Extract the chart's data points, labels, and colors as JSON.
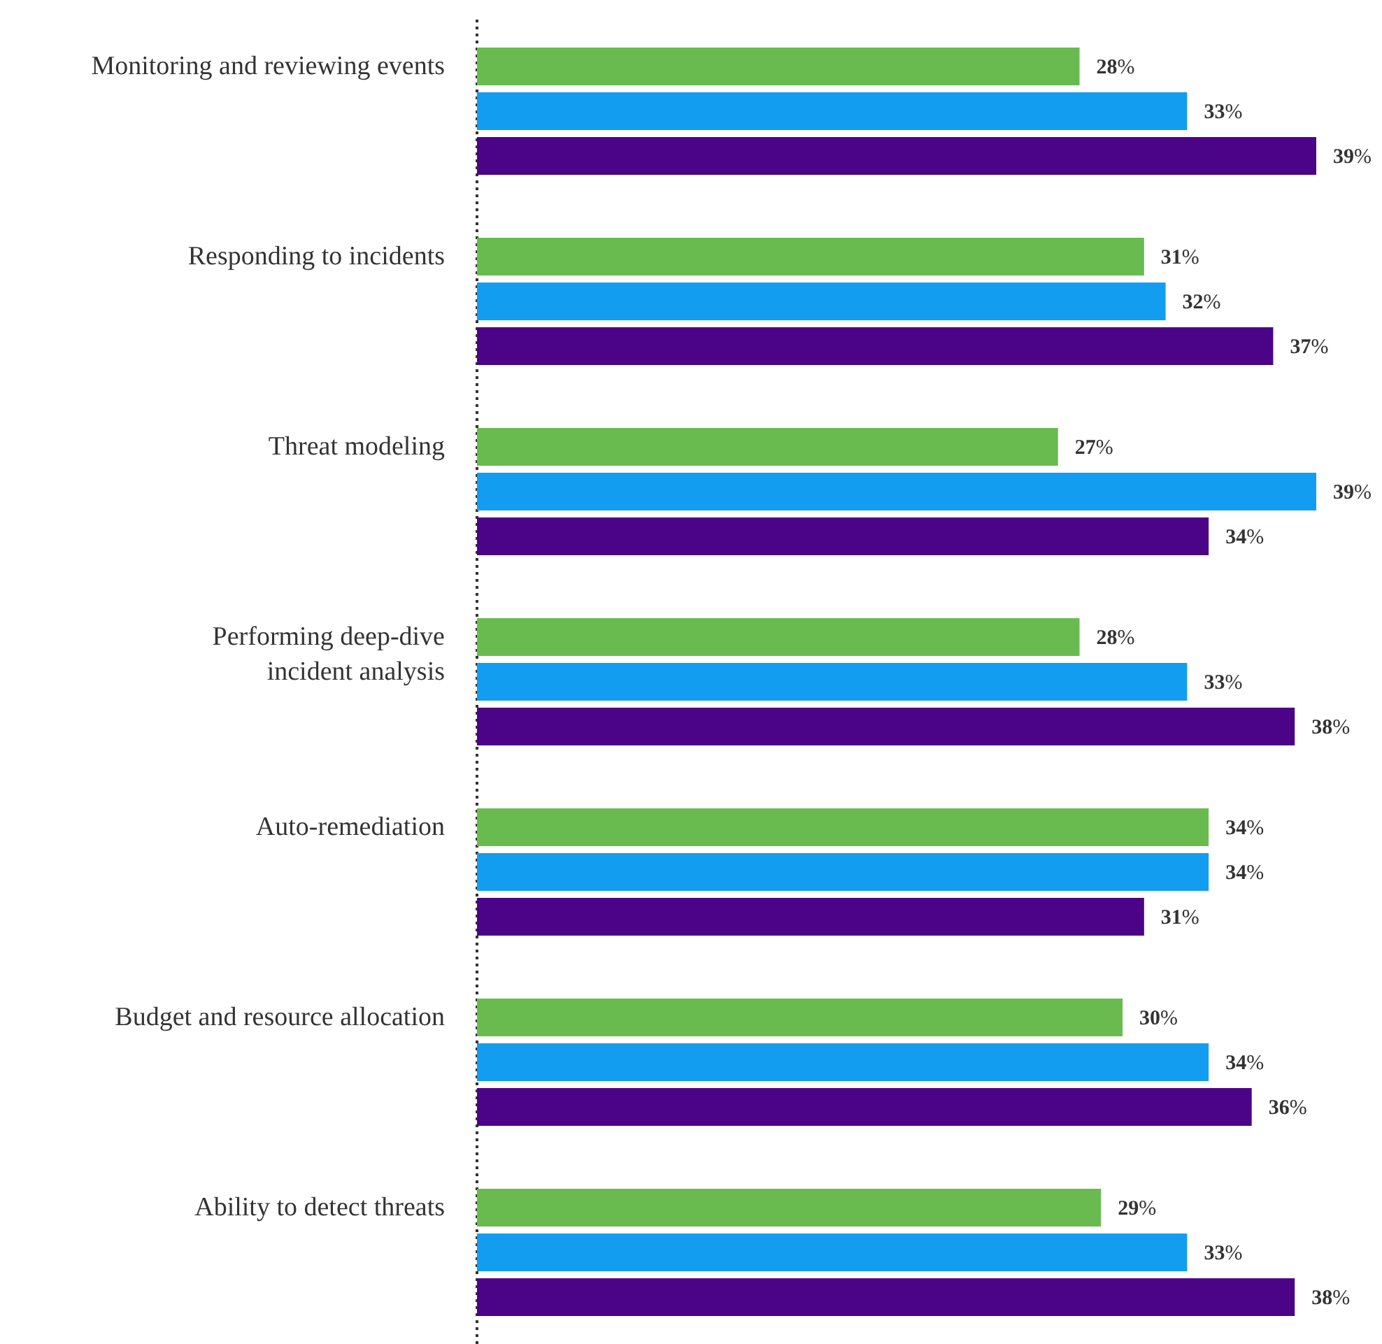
{
  "chart_data": {
    "type": "bar",
    "orientation": "horizontal",
    "categories": [
      "Monitoring and reviewing events",
      "Responding to incidents",
      "Threat modeling",
      "Performing deep-dive\nincident analysis",
      "Auto-remediation",
      "Budget and resource allocation",
      "Ability to detect threats"
    ],
    "series": [
      {
        "color": "#6abb4f",
        "values": [
          28,
          31,
          27,
          28,
          34,
          30,
          29
        ],
        "value_labels": [
          "28%",
          "31%",
          "27%",
          "28%",
          "34%",
          "30%",
          "29%"
        ]
      },
      {
        "color": "#139df0",
        "values": [
          33,
          32,
          39,
          33,
          34,
          34,
          33
        ],
        "value_labels": [
          "33%",
          "32%",
          "39%",
          "33%",
          "34%",
          "34%",
          "33%"
        ]
      },
      {
        "color": "#4b0487",
        "values": [
          39,
          37,
          34,
          38,
          31,
          36,
          38
        ],
        "value_labels": [
          "39%",
          "37%",
          "34%",
          "38%",
          "31%",
          "36%",
          "38%"
        ]
      }
    ]
  }
}
